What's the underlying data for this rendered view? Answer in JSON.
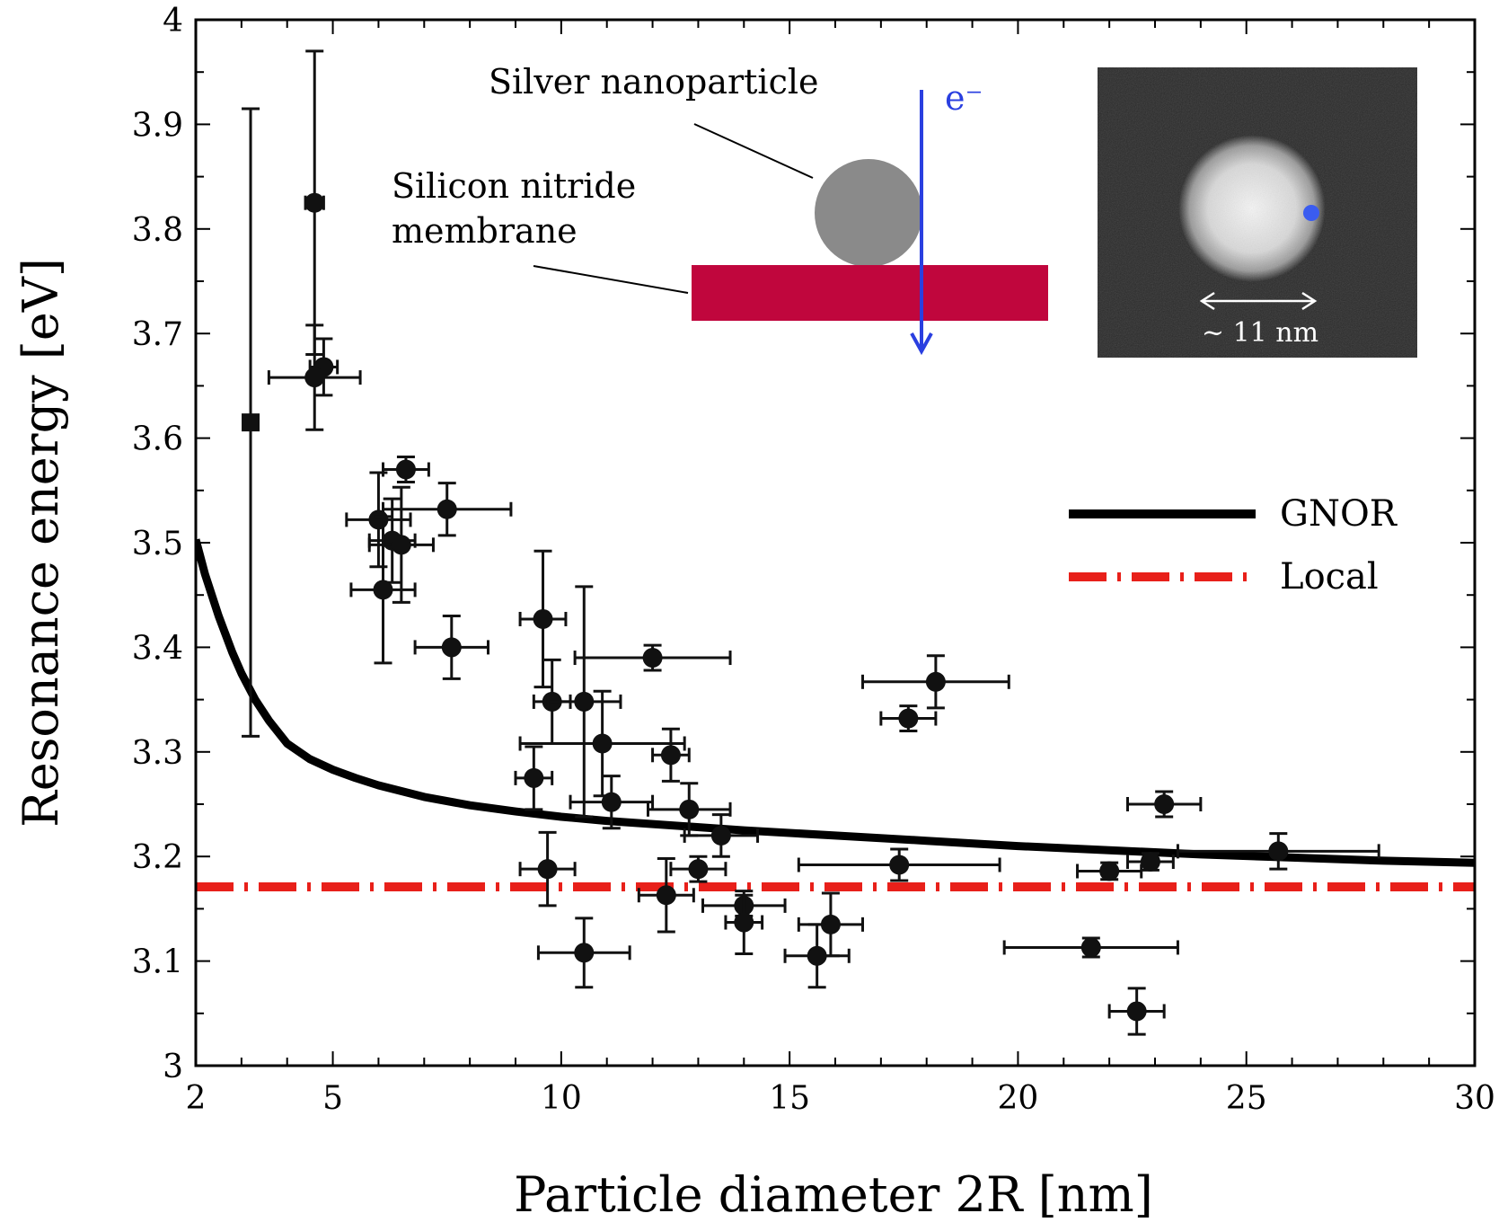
{
  "chart_data": {
    "type": "scatter",
    "xlabel": "Particle diameter 2R [nm]",
    "ylabel": "Resonance energy [eV]",
    "xlim": [
      2,
      30
    ],
    "ylim": [
      3.0,
      4.0
    ],
    "xticks": [
      "2",
      "5",
      "10",
      "15",
      "20",
      "25",
      "30"
    ],
    "yticks": [
      "3",
      "3.1",
      "3.2",
      "3.3",
      "3.4",
      "3.5",
      "3.6",
      "3.7",
      "3.8",
      "3.9",
      "4"
    ],
    "legend": {
      "placement": "right",
      "entries": [
        "GNOR",
        "Local"
      ]
    },
    "measurements": [
      {
        "x": 3.2,
        "y": 3.615,
        "xerr": 0.1,
        "yerr": 0.3,
        "marker": "square"
      },
      {
        "x": 4.6,
        "y": 3.825,
        "xerr": 0.2,
        "yerr": 0.145
      },
      {
        "x": 4.8,
        "y": 3.668,
        "xerr": 0.3,
        "yerr": 0.027
      },
      {
        "x": 4.6,
        "y": 3.658,
        "xerr": 1.0,
        "yerr": 0.05
      },
      {
        "x": 6.6,
        "y": 3.57,
        "xerr": 0.5,
        "yerr": 0.012
      },
      {
        "x": 6.0,
        "y": 3.522,
        "xerr": 0.7,
        "yerr": 0.045
      },
      {
        "x": 7.5,
        "y": 3.532,
        "xerr": 1.4,
        "yerr": 0.025
      },
      {
        "x": 6.3,
        "y": 3.502,
        "xerr": 0.5,
        "yerr": 0.04
      },
      {
        "x": 6.5,
        "y": 3.498,
        "xerr": 0.7,
        "yerr": 0.055
      },
      {
        "x": 6.1,
        "y": 3.455,
        "xerr": 0.7,
        "yerr": 0.07
      },
      {
        "x": 7.6,
        "y": 3.4,
        "xerr": 0.8,
        "yerr": 0.03
      },
      {
        "x": 9.6,
        "y": 3.427,
        "xerr": 0.5,
        "yerr": 0.065
      },
      {
        "x": 12.0,
        "y": 3.39,
        "xerr": 1.7,
        "yerr": 0.012
      },
      {
        "x": 9.8,
        "y": 3.348,
        "xerr": 0.4,
        "yerr": 0.04
      },
      {
        "x": 10.5,
        "y": 3.348,
        "xerr": 0.8,
        "yerr": 0.11
      },
      {
        "x": 10.9,
        "y": 3.308,
        "xerr": 1.8,
        "yerr": 0.05
      },
      {
        "x": 12.4,
        "y": 3.297,
        "xerr": 0.4,
        "yerr": 0.025
      },
      {
        "x": 9.4,
        "y": 3.275,
        "xerr": 0.4,
        "yerr": 0.03
      },
      {
        "x": 11.1,
        "y": 3.252,
        "xerr": 0.9,
        "yerr": 0.025
      },
      {
        "x": 12.8,
        "y": 3.245,
        "xerr": 0.9,
        "yerr": 0.025
      },
      {
        "x": 13.5,
        "y": 3.22,
        "xerr": 0.8,
        "yerr": 0.02
      },
      {
        "x": 9.7,
        "y": 3.188,
        "xerr": 0.6,
        "yerr": 0.035
      },
      {
        "x": 13.0,
        "y": 3.188,
        "xerr": 0.6,
        "yerr": 0.012
      },
      {
        "x": 12.3,
        "y": 3.163,
        "xerr": 0.6,
        "yerr": 0.035
      },
      {
        "x": 14.0,
        "y": 3.153,
        "xerr": 0.9,
        "yerr": 0.01
      },
      {
        "x": 14.0,
        "y": 3.137,
        "xerr": 0.4,
        "yerr": 0.03
      },
      {
        "x": 15.9,
        "y": 3.135,
        "xerr": 0.7,
        "yerr": 0.03
      },
      {
        "x": 10.5,
        "y": 3.108,
        "xerr": 1.0,
        "yerr": 0.033
      },
      {
        "x": 15.6,
        "y": 3.105,
        "xerr": 0.7,
        "yerr": 0.03
      },
      {
        "x": 18.2,
        "y": 3.367,
        "xerr": 1.6,
        "yerr": 0.025
      },
      {
        "x": 17.6,
        "y": 3.332,
        "xerr": 0.6,
        "yerr": 0.012
      },
      {
        "x": 17.4,
        "y": 3.192,
        "xerr": 2.2,
        "yerr": 0.015
      },
      {
        "x": 23.2,
        "y": 3.25,
        "xerr": 0.8,
        "yerr": 0.012
      },
      {
        "x": 25.7,
        "y": 3.205,
        "xerr": 2.2,
        "yerr": 0.017
      },
      {
        "x": 22.0,
        "y": 3.186,
        "xerr": 0.7,
        "yerr": 0.008
      },
      {
        "x": 22.9,
        "y": 3.195,
        "xerr": 0.5,
        "yerr": 0.008
      },
      {
        "x": 21.6,
        "y": 3.113,
        "xerr": 1.9,
        "yerr": 0.009
      },
      {
        "x": 22.6,
        "y": 3.052,
        "xerr": 0.6,
        "yerr": 0.022
      }
    ],
    "gnor_curve": {
      "name": "GNOR",
      "x": [
        2.0,
        2.2,
        2.5,
        2.8,
        3.0,
        3.3,
        3.6,
        4.0,
        4.5,
        5.0,
        5.5,
        6.0,
        7.0,
        8.0,
        9.0,
        10.0,
        11.0,
        12.0,
        14.0,
        16.0,
        18.0,
        20.0,
        22.0,
        24.0,
        26.0,
        28.0,
        30.0
      ],
      "y": [
        3.503,
        3.47,
        3.43,
        3.395,
        3.375,
        3.35,
        3.33,
        3.308,
        3.293,
        3.283,
        3.275,
        3.268,
        3.257,
        3.249,
        3.243,
        3.238,
        3.234,
        3.231,
        3.225,
        3.22,
        3.215,
        3.21,
        3.206,
        3.202,
        3.199,
        3.196,
        3.194
      ]
    },
    "local_line": {
      "name": "Local",
      "y": 3.171
    },
    "annotations": {
      "silver_label": "Silver nanoparticle",
      "membrane_label_1": "Silicon nitride",
      "membrane_label_2": "membrane",
      "electron_label": "e⁻",
      "scale_label": "~ 11 nm"
    },
    "colors": {
      "data": "#111111",
      "gnor": "#000000",
      "local": "#e8201a",
      "membrane": "#c0063d",
      "particle": "#8a8a8a",
      "electron": "#2a3fe0",
      "inset_bg": "#2a2a2a"
    }
  }
}
